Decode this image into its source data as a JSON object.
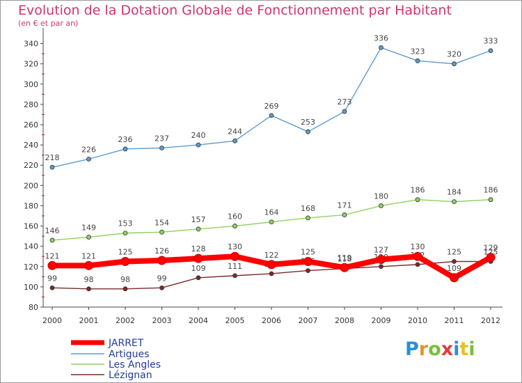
{
  "title": "Evolution de la Dotation Globale de Fonctionnement par Habitant",
  "subtitle": "(en € et par an)",
  "logo": {
    "letters": [
      "P",
      "r",
      "o",
      "x",
      "i",
      "t",
      "i"
    ],
    "colors": [
      "#2a8fd8",
      "#e8912c",
      "#79bf3a",
      "#e23b3b",
      "#2a8fd8",
      "#e8c21e",
      "#79bf3a"
    ]
  },
  "chart_data": {
    "type": "line",
    "title": "Evolution de la Dotation Globale de Fonctionnement par Habitant",
    "subtitle": "(en € et par an)",
    "x": [
      "2000",
      "2001",
      "2002",
      "2003",
      "2004",
      "2005",
      "2006",
      "2007",
      "2008",
      "2009",
      "2010",
      "2011",
      "2012"
    ],
    "yticks": [
      80,
      100,
      120,
      140,
      160,
      180,
      200,
      220,
      240,
      260,
      280,
      300,
      320,
      340
    ],
    "ylim": [
      80,
      350
    ],
    "grid": false,
    "legend": "bottom-left",
    "series": [
      {
        "name": "JARRET",
        "color": "#ff0000",
        "values": [
          121,
          121,
          125,
          126,
          128,
          130,
          122,
          125,
          119,
          127,
          130,
          109,
          129
        ],
        "labels": [
          "121",
          "121",
          "125",
          "126",
          "128",
          "130",
          "122",
          "125",
          "119",
          "127",
          "130",
          "109",
          "129"
        ]
      },
      {
        "name": "Artigues",
        "color": "#5b9bd0",
        "values": [
          218,
          226,
          236,
          237,
          240,
          244,
          269,
          253,
          273,
          336,
          323,
          320,
          333
        ],
        "labels": [
          "218",
          "226",
          "236",
          "237",
          "240",
          "244",
          "269",
          "253",
          "273",
          "336",
          "323",
          "320",
          "333"
        ]
      },
      {
        "name": "Les Angles",
        "color": "#8ed160",
        "values": [
          146,
          149,
          153,
          154,
          157,
          160,
          164,
          168,
          171,
          180,
          186,
          184,
          186
        ],
        "labels": [
          "146",
          "149",
          "153",
          "154",
          "157",
          "160",
          "164",
          "168",
          "171",
          "180",
          "186",
          "184",
          "186"
        ]
      },
      {
        "name": "Lézignan",
        "color": "#7a2a2a",
        "values": [
          99,
          98,
          98,
          99,
          109,
          111,
          113,
          116,
          118,
          120,
          122,
          125,
          125
        ],
        "labels": [
          "99",
          "98",
          "98",
          "99",
          "109",
          "111",
          "113",
          "116",
          "118",
          "120",
          "122",
          "125",
          "125"
        ]
      }
    ]
  }
}
